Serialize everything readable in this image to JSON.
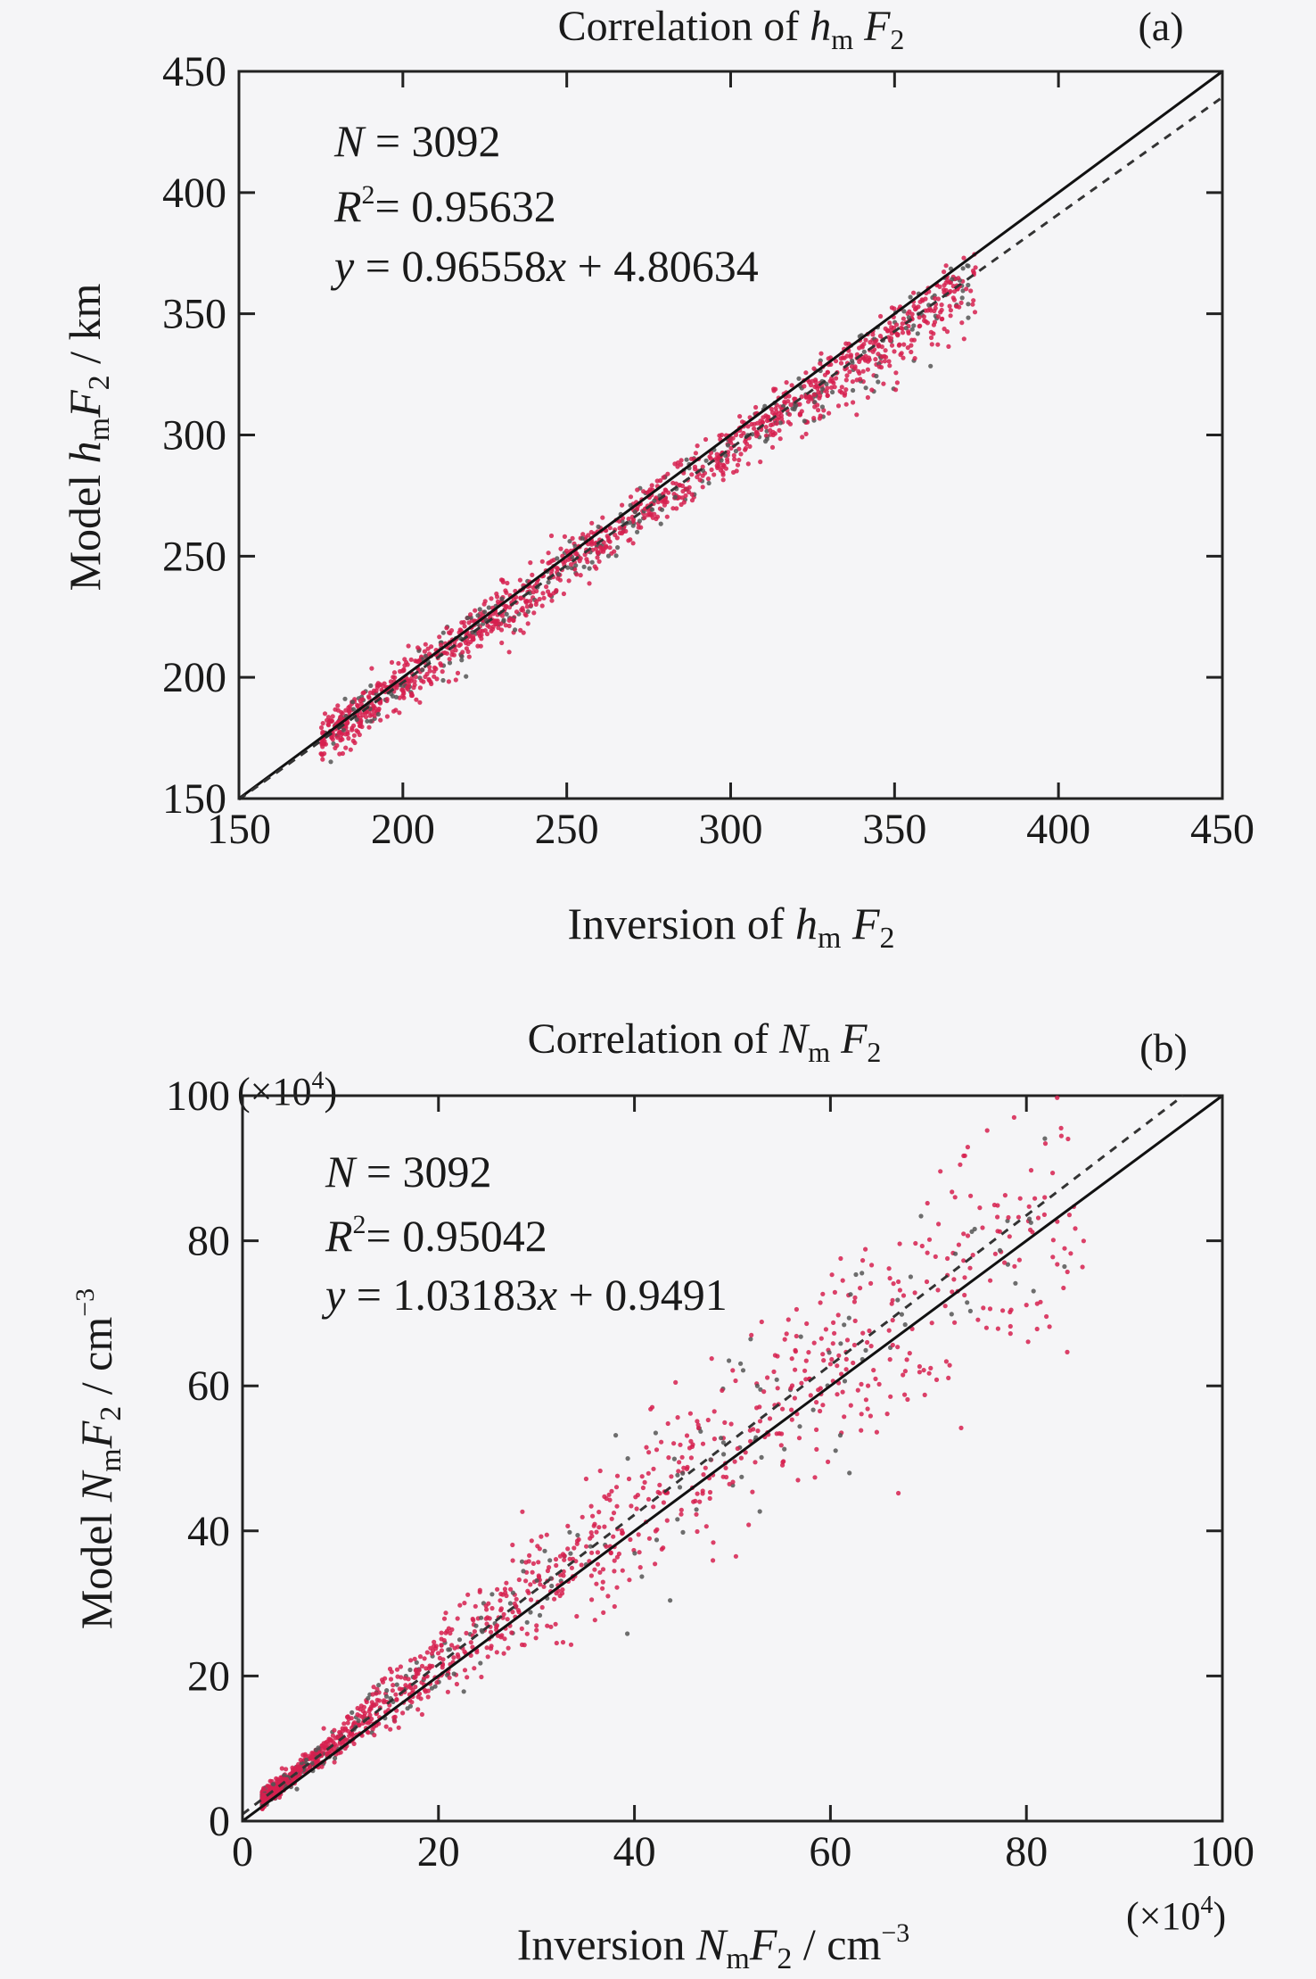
{
  "chart_data": [
    {
      "type": "scatter",
      "panel_label": "(a)",
      "title": {
        "prefix": "Correlation of ",
        "v": "h",
        "sub": "m",
        "v2": "F",
        "sub2": "2"
      },
      "xlabel": {
        "prefix": "Inversion of ",
        "v": "h",
        "sub": "m",
        "v2": "F",
        "sub2": "2",
        "suffix": ""
      },
      "ylabel": {
        "prefix": "Model ",
        "v": "h",
        "sub": "m",
        "v2": "F",
        "sub2": "2",
        "suffix": " / km"
      },
      "xlim": [
        150,
        450
      ],
      "ylim": [
        150,
        450
      ],
      "xticks": [
        150,
        200,
        250,
        300,
        350,
        400,
        450
      ],
      "yticks": [
        150,
        200,
        250,
        300,
        350,
        400,
        450
      ],
      "annotations": {
        "n_label": "N",
        "n_value": " = 3092",
        "r2_label": "R",
        "r2_sup": "2",
        "r2_value": "= 0.95632",
        "fit_y": "y",
        "fit_mid": " = 0.96558",
        "fit_x": "x",
        "fit_end": " + 4.80634"
      },
      "fit": {
        "slope": 0.96558,
        "intercept": 4.80634
      },
      "reference_line": {
        "slope": 1,
        "intercept": 0
      },
      "n_points": 3092,
      "point_colors": [
        "#d6204f",
        "#555555"
      ],
      "scatter_sample": {
        "x_range": [
          175,
          375
        ],
        "spread": 5
      }
    },
    {
      "type": "scatter",
      "panel_label": "(b)",
      "title": {
        "prefix": "Correlation of ",
        "v": "N",
        "sub": "m",
        "v2": "F",
        "sub2": "2"
      },
      "xlabel": {
        "prefix": "Inversion ",
        "v": "N",
        "sub": "m",
        "v2": "F",
        "sub2": "2",
        "suffix": " / cm",
        "sup": "−3"
      },
      "ylabel": {
        "prefix": "Model ",
        "v": "N",
        "sub": "m",
        "v2": "F",
        "sub2": "2",
        "suffix": " / cm",
        "sup": "−3"
      },
      "xlim": [
        0,
        100
      ],
      "ylim": [
        0,
        100
      ],
      "xticks": [
        0,
        20,
        40,
        60,
        80,
        100
      ],
      "yticks": [
        0,
        20,
        40,
        60,
        80,
        100
      ],
      "scale_label": "(×10",
      "scale_sup": "4",
      "scale_end": ")",
      "annotations": {
        "n_label": "N",
        "n_value": " = 3092",
        "r2_label": "R",
        "r2_sup": "2",
        "r2_value": "= 0.95042",
        "fit_y": "y",
        "fit_mid": " = 1.03183",
        "fit_x": "x",
        "fit_end": " + 0.9491"
      },
      "fit": {
        "slope": 1.03183,
        "intercept": 0.9491
      },
      "reference_line": {
        "slope": 1,
        "intercept": 0
      },
      "n_points": 3092,
      "point_colors": [
        "#d6204f",
        "#555555"
      ],
      "scatter_sample": {
        "x_range": [
          2,
          86
        ],
        "spread": 0.12
      }
    }
  ]
}
